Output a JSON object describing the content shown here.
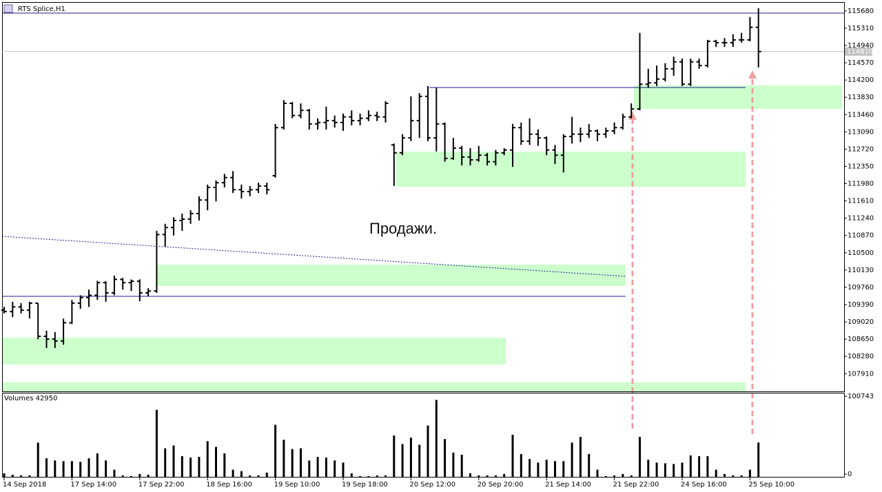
{
  "chart_data": [
    {
      "type": "ohlc",
      "title": "RTS Splice,H1",
      "annotation": "Продажи.",
      "last_price": 114810,
      "color": "#000000",
      "last_price_color": "#c0c0c0",
      "ylim": [
        107530,
        115870
      ],
      "yticks": [
        115680,
        115310,
        114940,
        114570,
        114200,
        113830,
        113460,
        113090,
        112720,
        112350,
        111980,
        111610,
        111240,
        110870,
        110500,
        110130,
        109760,
        109390,
        109020,
        108650,
        108280,
        107910
      ],
      "ohlc": [
        [
          109270,
          109340,
          109200,
          109240
        ],
        [
          109240,
          109450,
          109120,
          109340
        ],
        [
          109340,
          109420,
          109200,
          109270
        ],
        [
          109270,
          109450,
          109090,
          109420
        ],
        [
          109420,
          109420,
          108650,
          108710
        ],
        [
          108710,
          108830,
          108460,
          108650
        ],
        [
          108650,
          108800,
          108460,
          108610
        ],
        [
          108610,
          109090,
          108530,
          109000
        ],
        [
          109000,
          109490,
          108970,
          109420
        ],
        [
          109420,
          109590,
          109300,
          109540
        ],
        [
          109540,
          109710,
          109340,
          109590
        ],
        [
          109590,
          109900,
          109490,
          109860
        ],
        [
          109860,
          109890,
          109450,
          109640
        ],
        [
          109640,
          110010,
          109590,
          109930
        ],
        [
          109930,
          109960,
          109710,
          109860
        ],
        [
          109860,
          109930,
          109680,
          109890
        ],
        [
          109890,
          109930,
          109460,
          109640
        ],
        [
          109640,
          109740,
          109570,
          109680
        ],
        [
          109680,
          110970,
          109640,
          110890
        ],
        [
          110890,
          111120,
          110630,
          111040
        ],
        [
          111040,
          111260,
          110870,
          111190
        ],
        [
          111190,
          111340,
          110970,
          111220
        ],
        [
          111220,
          111410,
          111120,
          111340
        ],
        [
          111340,
          111710,
          111190,
          111630
        ],
        [
          111630,
          111960,
          111410,
          111900
        ],
        [
          111900,
          112050,
          111600,
          112000
        ],
        [
          112000,
          112190,
          111900,
          112110
        ],
        [
          112110,
          112250,
          111780,
          111850
        ],
        [
          111850,
          111960,
          111660,
          111810
        ],
        [
          111810,
          111930,
          111710,
          111850
        ],
        [
          111850,
          112000,
          111780,
          111930
        ],
        [
          111930,
          112000,
          111750,
          111850
        ],
        [
          112150,
          113260,
          112110,
          113180
        ],
        [
          113180,
          113770,
          113140,
          113700
        ],
        [
          113700,
          113730,
          113380,
          113440
        ],
        [
          113440,
          113700,
          113380,
          113550
        ],
        [
          113550,
          113580,
          113140,
          113260
        ],
        [
          113260,
          113380,
          113140,
          113290
        ],
        [
          113290,
          113630,
          113140,
          113330
        ],
        [
          113330,
          113440,
          113180,
          113290
        ],
        [
          113290,
          113480,
          113110,
          113410
        ],
        [
          113410,
          113550,
          113230,
          113330
        ],
        [
          113330,
          113480,
          113230,
          113380
        ],
        [
          113380,
          113550,
          113320,
          113440
        ],
        [
          113440,
          113520,
          113320,
          113410
        ],
        [
          113410,
          113750,
          113290,
          113700
        ],
        [
          112810,
          112840,
          111930,
          112640
        ],
        [
          112640,
          113040,
          112590,
          112960
        ],
        [
          112960,
          113850,
          112890,
          113330
        ],
        [
          113330,
          113920,
          112960,
          113850
        ],
        [
          113850,
          114070,
          112890,
          112960
        ],
        [
          112960,
          114030,
          112670,
          113260
        ],
        [
          113260,
          113290,
          112450,
          112520
        ],
        [
          112520,
          112960,
          112490,
          112740
        ],
        [
          112740,
          112790,
          112370,
          112550
        ],
        [
          112550,
          112740,
          112370,
          112490
        ],
        [
          112490,
          112790,
          112450,
          112590
        ],
        [
          112590,
          112640,
          112370,
          112450
        ],
        [
          112450,
          112700,
          112370,
          112640
        ],
        [
          112640,
          112740,
          112590,
          112700
        ],
        [
          112700,
          113260,
          112340,
          113180
        ],
        [
          113180,
          113290,
          112810,
          112890
        ],
        [
          112890,
          113380,
          112810,
          113040
        ],
        [
          113040,
          113140,
          112790,
          112960
        ],
        [
          112960,
          112990,
          112590,
          112700
        ],
        [
          112700,
          112810,
          112400,
          112590
        ],
        [
          112590,
          113040,
          112220,
          112990
        ],
        [
          112990,
          113410,
          112840,
          113040
        ],
        [
          113040,
          113180,
          112870,
          113040
        ],
        [
          113040,
          113260,
          112960,
          113110
        ],
        [
          113110,
          113140,
          112890,
          113040
        ],
        [
          113040,
          113180,
          112960,
          113110
        ],
        [
          113110,
          113290,
          113040,
          113180
        ],
        [
          113180,
          113480,
          113140,
          113410
        ],
        [
          113410,
          113700,
          113380,
          113580
        ],
        [
          113580,
          115210,
          113550,
          114110
        ],
        [
          114110,
          114440,
          114030,
          114140
        ],
        [
          114140,
          114510,
          114070,
          114220
        ],
        [
          114220,
          114560,
          114170,
          114440
        ],
        [
          114440,
          114700,
          114290,
          114590
        ],
        [
          114590,
          114660,
          114070,
          114110
        ],
        [
          114110,
          114660,
          114070,
          114590
        ],
        [
          114590,
          114660,
          114440,
          114510
        ],
        [
          114510,
          115060,
          114470,
          115030
        ],
        [
          115030,
          115060,
          114910,
          115000
        ],
        [
          115000,
          115100,
          114910,
          115000
        ],
        [
          115000,
          115180,
          114910,
          115060
        ],
        [
          115060,
          115210,
          115000,
          115060
        ],
        [
          115060,
          115550,
          115030,
          115330
        ],
        [
          115330,
          115740,
          114470,
          114810
        ]
      ]
    },
    {
      "type": "bar",
      "title": "Volumes 42950",
      "color": "#000000",
      "ylim": [
        0,
        104310
      ],
      "yticks": [
        100743,
        0
      ],
      "categories": [
        "14 Sep 2018",
        null,
        null,
        null,
        null,
        null,
        null,
        null,
        "17 Sep 14:00",
        null,
        null,
        null,
        null,
        null,
        null,
        null,
        "17 Sep 22:00",
        null,
        null,
        null,
        null,
        null,
        null,
        null,
        "18 Sep 16:00",
        null,
        null,
        null,
        null,
        null,
        null,
        null,
        "19 Sep 10:00",
        null,
        null,
        null,
        null,
        null,
        null,
        null,
        "19 Sep 18:00",
        null,
        null,
        null,
        null,
        null,
        null,
        null,
        "20 Sep 12:00",
        null,
        null,
        null,
        null,
        null,
        null,
        null,
        "20 Sep 20:00",
        null,
        null,
        null,
        null,
        null,
        null,
        null,
        "21 Sep 14:00",
        null,
        null,
        null,
        null,
        null,
        null,
        null,
        "21 Sep 22:00",
        null,
        null,
        null,
        null,
        null,
        null,
        null,
        "24 Sep 16:00",
        null,
        null,
        null,
        null,
        null,
        null,
        null,
        "25 Sep 10:00",
        null
      ],
      "values": [
        4460,
        2670,
        1780,
        1780,
        42790,
        23180,
        20500,
        19610,
        19610,
        18720,
        23180,
        29420,
        20500,
        8920,
        1780,
        890,
        3570,
        2670,
        83800,
        35660,
        39230,
        25850,
        24070,
        24960,
        44580,
        37440,
        29420,
        8920,
        7130,
        1780,
        1780,
        5350,
        65080,
        46360,
        34770,
        35660,
        20500,
        24960,
        24070,
        20500,
        17830,
        4460,
        890,
        890,
        1780,
        1780,
        51710,
        41010,
        49030,
        40120,
        64190,
        96280,
        47250,
        30310,
        27640,
        4460,
        1780,
        1780,
        1780,
        3570,
        52600,
        28530,
        22290,
        17830,
        21400,
        19610,
        19610,
        42790,
        49920,
        28530,
        8920,
        890,
        1780,
        3570,
        1780,
        49920,
        21400,
        17830,
        16940,
        16050,
        17830,
        26750,
        25850,
        25850,
        8920,
        3570,
        1780,
        1780,
        8920,
        42950
      ]
    }
  ]
}
